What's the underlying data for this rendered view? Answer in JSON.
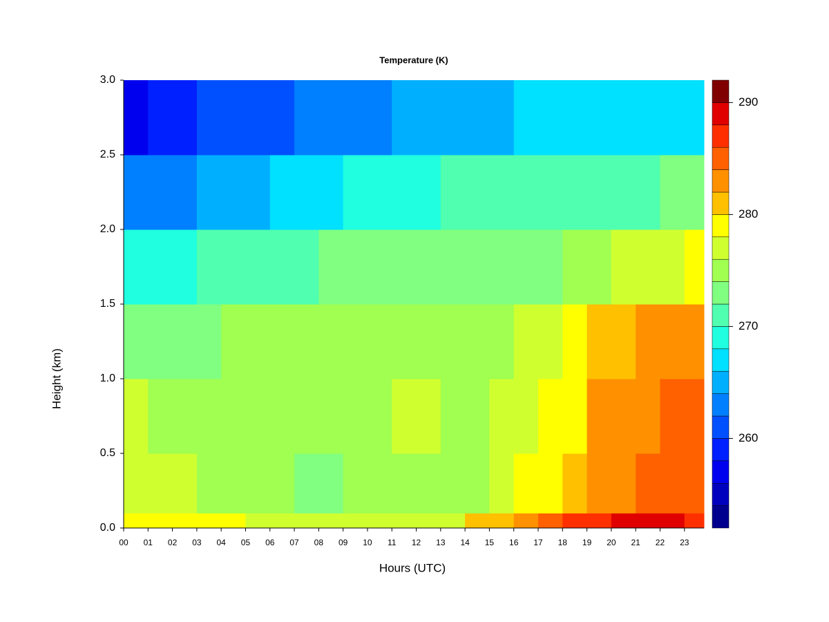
{
  "chart_data": {
    "type": "heatmap",
    "title": "Temperature (K)",
    "x_label": "Hours (UTC)",
    "y_label": "Height (km)",
    "xlim": [
      0,
      23.8
    ],
    "ylim": [
      0,
      3
    ],
    "xticks": [
      {
        "value": 0,
        "label": "00"
      },
      {
        "value": 1,
        "label": "01"
      },
      {
        "value": 2,
        "label": "02"
      },
      {
        "value": 3,
        "label": "03"
      },
      {
        "value": 4,
        "label": "04"
      },
      {
        "value": 5,
        "label": "05"
      },
      {
        "value": 6,
        "label": "06"
      },
      {
        "value": 7,
        "label": "07"
      },
      {
        "value": 8,
        "label": "08"
      },
      {
        "value": 9,
        "label": "09"
      },
      10,
      11,
      12,
      13,
      14,
      15,
      16,
      17,
      18,
      19,
      20,
      21,
      22,
      23
    ],
    "yticks": [
      {
        "value": 0,
        "label": "0.0"
      },
      {
        "value": 0.5,
        "label": "0.5"
      },
      {
        "value": 1,
        "label": "1.0"
      },
      {
        "value": 1.5,
        "label": "1.5"
      },
      {
        "value": 2,
        "label": "2.0"
      },
      {
        "value": 2.5,
        "label": "2.5"
      },
      {
        "value": 3,
        "label": "3.0"
      }
    ],
    "xbins": [
      0,
      1,
      2,
      3,
      4,
      5,
      6,
      7,
      8,
      9,
      10,
      11,
      12,
      13,
      14,
      15,
      16,
      17,
      18,
      19,
      20,
      21,
      22,
      23,
      23.8
    ],
    "ybins": [
      0,
      0.1,
      0.5,
      1,
      1.5,
      2,
      2.5,
      3
    ],
    "values": [
      [
        279,
        279,
        279,
        278,
        278,
        277,
        277,
        277,
        277,
        277,
        277,
        277,
        277,
        277,
        280,
        281,
        283,
        284,
        286,
        287,
        289,
        289,
        288,
        287
      ],
      [
        276,
        276,
        276,
        275,
        274,
        274,
        274,
        273,
        273,
        274,
        275,
        275,
        275,
        275,
        275,
        276,
        278,
        279,
        280,
        282,
        283,
        284,
        284,
        285
      ],
      [
        276,
        275,
        275,
        275,
        274,
        274,
        274,
        274,
        274,
        274,
        274,
        276,
        276,
        275,
        275,
        276,
        277,
        278,
        279,
        282,
        282,
        283,
        284,
        285
      ],
      [
        272,
        273,
        273,
        273,
        274,
        274,
        274,
        274,
        274,
        274,
        274,
        274,
        274,
        275,
        275,
        275,
        276,
        277,
        278,
        280,
        281,
        282,
        282,
        282
      ],
      [
        268,
        268,
        269,
        270,
        270,
        271,
        271,
        271,
        272,
        272,
        272,
        272,
        272,
        272,
        273,
        273,
        273,
        273,
        274,
        275,
        276,
        277,
        277,
        278
      ],
      [
        262,
        263,
        263,
        264,
        264,
        265,
        266,
        267,
        267,
        268,
        268,
        268,
        269,
        270,
        270,
        270,
        270,
        270,
        270,
        271,
        271,
        271,
        272,
        272
      ],
      [
        256,
        258,
        259,
        260,
        260,
        261,
        261,
        262,
        262,
        262,
        263,
        264,
        264,
        264,
        265,
        265,
        266,
        266,
        266,
        266,
        266,
        267,
        267,
        267
      ]
    ],
    "colorbar": {
      "levels": [
        252,
        254,
        256,
        258,
        260,
        262,
        264,
        266,
        268,
        270,
        272,
        274,
        276,
        278,
        280,
        282,
        284,
        286,
        288,
        290,
        292
      ],
      "colors": [
        "#00008f",
        "#0000bf",
        "#0000ef",
        "#0020ff",
        "#0050ff",
        "#0080ff",
        "#00b0ff",
        "#00e0ff",
        "#20ffdf",
        "#50ffaf",
        "#80ff80",
        "#a0ff50",
        "#d0ff30",
        "#ffff00",
        "#ffc000",
        "#ff9000",
        "#ff6000",
        "#ff3000",
        "#e00000",
        "#800000"
      ],
      "ticks": [
        260,
        270,
        280,
        290
      ]
    }
  }
}
